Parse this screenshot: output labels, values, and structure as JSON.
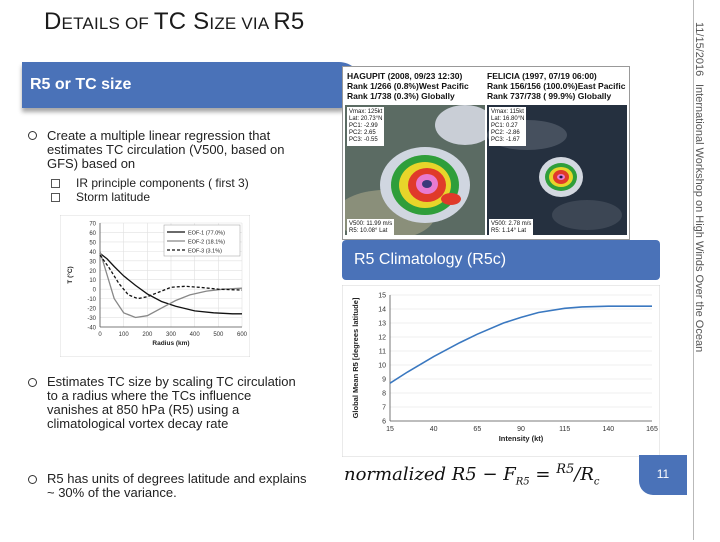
{
  "slide": {
    "title": {
      "part1": "D",
      "part2": "ETAILS OF ",
      "part3": "TC S",
      "part4": "IZE VIA ",
      "part5": "R5"
    },
    "date": "11/15/2016",
    "footer": "International Workshop on High Winds Over the Ocean",
    "page_number": "11"
  },
  "section": {
    "heading": "R5 or TC size"
  },
  "bullets": [
    {
      "text": "Create a multiple linear regression that estimates TC circulation (V500, based on GFS) based on"
    },
    {
      "text": "Estimates TC size by scaling TC circulation to a radius where the TCs influence vanishes at 850 hPa (R5) using a climatological vortex decay rate"
    },
    {
      "text": "R5 has units of degrees latitude and explains ~ 30% of the variance."
    }
  ],
  "subbullets": [
    {
      "text": "IR principle components ( first 3)"
    },
    {
      "text": "Storm latitude"
    }
  ],
  "satellite_panel": {
    "left": {
      "header": [
        "HAGUPIT (2008, 09/23 12:30)",
        "Rank 1/266 (0.8%)West Pacific",
        "Rank 1/738 (0.3%) Globally"
      ],
      "stats": [
        "Vmax: 125kt",
        "Lat:   20.73°N",
        "PC1:  -2.99",
        "PC2:   2.65",
        "PC3:  -0.55"
      ],
      "bottom": [
        "V500:  11.99 m/s",
        "R5:   10.08° Lat"
      ]
    },
    "right": {
      "header": [
        "FELICIA (1997, 07/19 06:00)",
        "Rank 156/156 (100.0%)East Pacific",
        "Rank 737/738 ( 99.9%) Globally"
      ],
      "stats": [
        "Vmax: 115kt",
        "Lat:   16.80°N",
        "PC1:   0.27",
        "PC2:  -2.86",
        "PC3:  -1.67"
      ],
      "bottom": [
        "V500:  2.78 m/s",
        "R5:    1.14° Lat"
      ]
    }
  },
  "climatology_bar": "R5 Climatology (R5c)",
  "equation": {
    "lhs": "normalized R5 − F",
    "lhs_sub": "R5",
    "eq": " = ",
    "num": "R5",
    "den": "R",
    "den_sub": "c"
  },
  "chart_data": [
    {
      "type": "line",
      "title": "",
      "xlabel": "Radius (km)",
      "ylabel": "T (°C)",
      "xlim": [
        0,
        600
      ],
      "ylim": [
        -40,
        70
      ],
      "x_ticks": [
        0,
        100,
        200,
        300,
        400,
        500,
        600
      ],
      "y_ticks": [
        -40,
        -30,
        -20,
        -10,
        0,
        10,
        20,
        30,
        40,
        50,
        60,
        70
      ],
      "legend_position": "top-right",
      "series": [
        {
          "name": "EOF-1 (77.0%)",
          "color": "#111111",
          "dash": "solid",
          "x": [
            0,
            30,
            60,
            100,
            150,
            200,
            260,
            320,
            400,
            480,
            560,
            600
          ],
          "y": [
            38,
            32,
            24,
            14,
            4,
            -5,
            -13,
            -18,
            -23,
            -25,
            -26,
            -26
          ]
        },
        {
          "name": "EOF-2 (18.1%)",
          "color": "#888888",
          "dash": "solid",
          "x": [
            0,
            30,
            60,
            100,
            150,
            200,
            260,
            320,
            380,
            450,
            520,
            600
          ],
          "y": [
            40,
            15,
            -10,
            -25,
            -30,
            -28,
            -20,
            -12,
            -6,
            -2,
            0,
            1
          ]
        },
        {
          "name": "EOF-3 (3.1%)",
          "color": "#111111",
          "dash": "dashed",
          "x": [
            0,
            40,
            80,
            120,
            160,
            200,
            250,
            300,
            360,
            420,
            500,
            600
          ],
          "y": [
            36,
            22,
            6,
            -6,
            -10,
            -8,
            -3,
            2,
            3,
            2,
            0,
            -1
          ]
        }
      ]
    },
    {
      "type": "line",
      "title": "",
      "xlabel": "Intensity (kt)",
      "ylabel": "Global Mean R5 [degrees latitude]",
      "xlim": [
        15,
        165
      ],
      "ylim": [
        6,
        15
      ],
      "x_ticks": [
        15,
        40,
        65,
        90,
        115,
        140,
        165
      ],
      "y_ticks": [
        6,
        7,
        8,
        9,
        10,
        11,
        12,
        13,
        14,
        15
      ],
      "series": [
        {
          "color": "#3a78c0",
          "x": [
            15,
            25,
            40,
            55,
            65,
            80,
            90,
            100,
            115,
            125,
            140,
            150,
            165
          ],
          "y": [
            8.7,
            9.5,
            10.6,
            11.6,
            12.2,
            13.0,
            13.4,
            13.75,
            14.05,
            14.15,
            14.2,
            14.2,
            14.2
          ]
        }
      ]
    }
  ]
}
